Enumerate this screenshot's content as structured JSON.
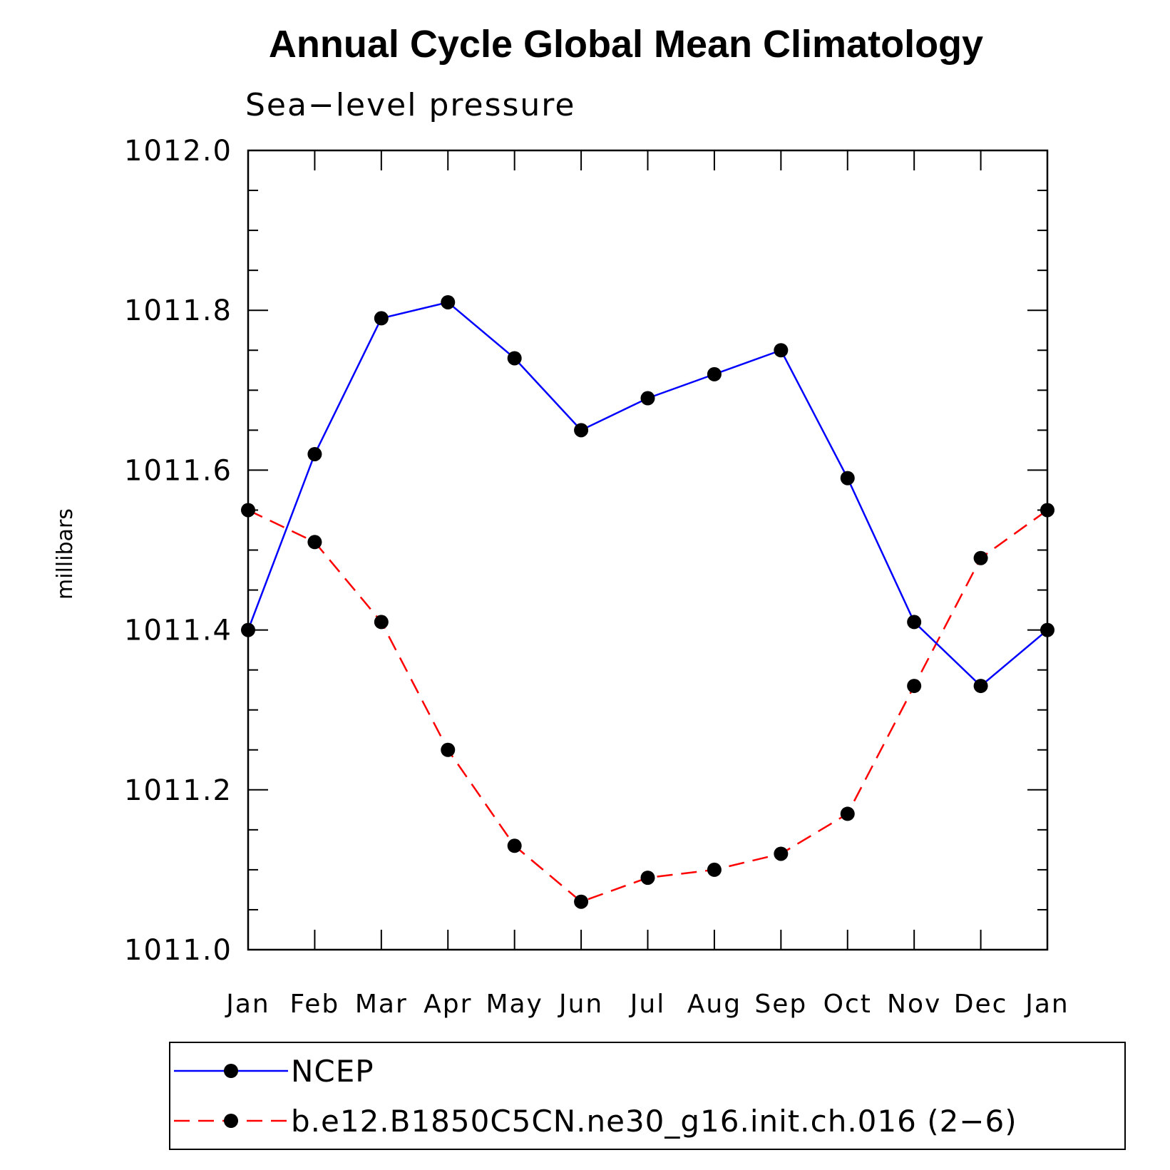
{
  "chart_data": {
    "type": "line",
    "title": "Annual Cycle Global Mean Climatology",
    "subtitle": "Sea−level pressure",
    "xlabel": "",
    "ylabel": "millibars",
    "ylim": [
      1011.0,
      1012.0
    ],
    "y_ticks": [
      "1011.0",
      "1011.2",
      "1011.4",
      "1011.6",
      "1011.8",
      "1012.0"
    ],
    "categories": [
      "Jan",
      "Feb",
      "Mar",
      "Apr",
      "May",
      "Jun",
      "Jul",
      "Aug",
      "Sep",
      "Oct",
      "Nov",
      "Dec",
      "Jan"
    ],
    "grid": false,
    "legend_position": "bottom",
    "series": [
      {
        "name": "NCEP",
        "color": "#0000ff",
        "line_style": "solid",
        "marker": "circle",
        "values": [
          1011.4,
          1011.62,
          1011.79,
          1011.81,
          1011.74,
          1011.65,
          1011.69,
          1011.72,
          1011.75,
          1011.59,
          1011.41,
          1011.33,
          1011.4
        ]
      },
      {
        "name": "b.e12.B1850C5CN.ne30_g16.init.ch.016 (2−6)",
        "color": "#ff0000",
        "line_style": "dashed",
        "marker": "circle",
        "values": [
          1011.55,
          1011.51,
          1011.41,
          1011.25,
          1011.13,
          1011.06,
          1011.09,
          1011.1,
          1011.12,
          1011.17,
          1011.33,
          1011.49,
          1011.55
        ]
      }
    ]
  }
}
